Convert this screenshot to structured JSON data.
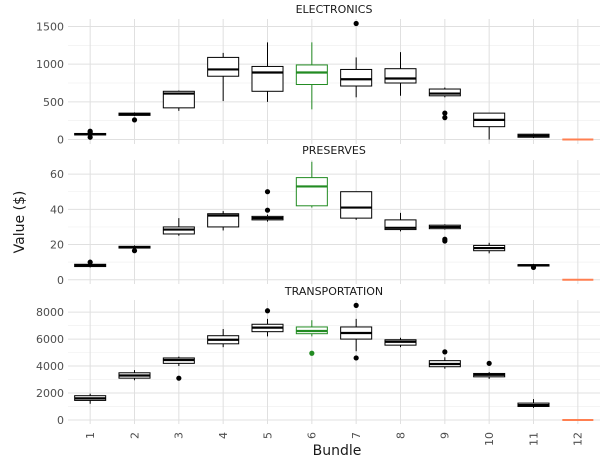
{
  "chart_data": {
    "type": "box",
    "xlabel": "Bundle",
    "ylabel": "Value ($)",
    "categories": [
      "1",
      "2",
      "3",
      "4",
      "5",
      "6",
      "7",
      "8",
      "9",
      "10",
      "11",
      "12"
    ],
    "colors": {
      "default": "#000000",
      "highlight": "#228b22",
      "zero": "#ff7f50"
    },
    "panels": [
      {
        "title": "ELECTRONICS",
        "ylim": [
          -60,
          1600
        ],
        "yticks": [
          0,
          500,
          1000,
          1500
        ],
        "boxes": [
          {
            "x": "1",
            "q1": 60,
            "median": 70,
            "q3": 80,
            "lo": 55,
            "hi": 90,
            "outliers": [
              30,
              95,
              110
            ],
            "color": "default"
          },
          {
            "x": "2",
            "q1": 320,
            "median": 335,
            "q3": 350,
            "lo": 310,
            "hi": 360,
            "outliers": [
              260
            ],
            "color": "default"
          },
          {
            "x": "3",
            "q1": 420,
            "median": 610,
            "q3": 640,
            "lo": 380,
            "hi": 650,
            "outliers": [],
            "color": "default"
          },
          {
            "x": "4",
            "q1": 840,
            "median": 930,
            "q3": 1090,
            "lo": 510,
            "hi": 1150,
            "outliers": [],
            "color": "default"
          },
          {
            "x": "5",
            "q1": 640,
            "median": 890,
            "q3": 970,
            "lo": 500,
            "hi": 1290,
            "outliers": [],
            "color": "default"
          },
          {
            "x": "6",
            "q1": 730,
            "median": 890,
            "q3": 990,
            "lo": 400,
            "hi": 1290,
            "outliers": [],
            "color": "highlight"
          },
          {
            "x": "7",
            "q1": 710,
            "median": 800,
            "q3": 930,
            "lo": 560,
            "hi": 1090,
            "outliers": [
              1540
            ],
            "color": "default"
          },
          {
            "x": "8",
            "q1": 750,
            "median": 810,
            "q3": 940,
            "lo": 580,
            "hi": 1160,
            "outliers": [],
            "color": "default"
          },
          {
            "x": "9",
            "q1": 580,
            "median": 610,
            "q3": 670,
            "lo": 560,
            "hi": 690,
            "outliers": [
              350,
              290
            ],
            "color": "default"
          },
          {
            "x": "10",
            "q1": 170,
            "median": 260,
            "q3": 350,
            "lo": 0,
            "hi": 350,
            "outliers": [],
            "color": "default"
          },
          {
            "x": "11",
            "q1": 30,
            "median": 50,
            "q3": 70,
            "lo": 20,
            "hi": 80,
            "outliers": [],
            "color": "default"
          },
          {
            "x": "12",
            "q1": 0,
            "median": 0,
            "q3": 0,
            "lo": 0,
            "hi": 0,
            "outliers": [],
            "color": "zero"
          }
        ]
      },
      {
        "title": "PRESERVES",
        "ylim": [
          -2.4,
          68
        ],
        "yticks": [
          0,
          20,
          40,
          60
        ],
        "boxes": [
          {
            "x": "1",
            "q1": 7.5,
            "median": 8.2,
            "q3": 8.8,
            "lo": 7,
            "hi": 9,
            "outliers": [
              10
            ],
            "color": "default"
          },
          {
            "x": "2",
            "q1": 18,
            "median": 18.5,
            "q3": 19,
            "lo": 17.5,
            "hi": 19.5,
            "outliers": [
              16.5
            ],
            "color": "default"
          },
          {
            "x": "3",
            "q1": 26,
            "median": 28.5,
            "q3": 30,
            "lo": 25,
            "hi": 35,
            "outliers": [],
            "color": "default"
          },
          {
            "x": "4",
            "q1": 30,
            "median": 36.5,
            "q3": 37.5,
            "lo": 28,
            "hi": 39,
            "outliers": [],
            "color": "default"
          },
          {
            "x": "5",
            "q1": 34,
            "median": 35,
            "q3": 36,
            "lo": 33,
            "hi": 37,
            "outliers": [
              50,
              39.5
            ],
            "color": "default"
          },
          {
            "x": "6",
            "q1": 42,
            "median": 53,
            "q3": 58,
            "lo": 41,
            "hi": 67,
            "outliers": [],
            "color": "highlight"
          },
          {
            "x": "7",
            "q1": 35,
            "median": 41,
            "q3": 50,
            "lo": 34,
            "hi": 50,
            "outliers": [],
            "color": "default"
          },
          {
            "x": "8",
            "q1": 28.5,
            "median": 29.5,
            "q3": 34,
            "lo": 27.5,
            "hi": 38,
            "outliers": [],
            "color": "default"
          },
          {
            "x": "9",
            "q1": 29,
            "median": 30,
            "q3": 31,
            "lo": 28.5,
            "hi": 31.5,
            "outliers": [
              23,
              22
            ],
            "color": "default"
          },
          {
            "x": "10",
            "q1": 16.5,
            "median": 18,
            "q3": 19.5,
            "lo": 15,
            "hi": 21,
            "outliers": [],
            "color": "default"
          },
          {
            "x": "11",
            "q1": 7.8,
            "median": 8.2,
            "q3": 8.6,
            "lo": 7.5,
            "hi": 9,
            "outliers": [
              7
            ],
            "color": "default"
          },
          {
            "x": "12",
            "q1": 0,
            "median": 0,
            "q3": 0,
            "lo": 0,
            "hi": 0,
            "outliers": [],
            "color": "zero"
          }
        ]
      },
      {
        "title": "TRANSPORTATION",
        "ylim": [
          -300,
          8900
        ],
        "yticks": [
          0,
          2000,
          4000,
          6000,
          8000
        ],
        "boxes": [
          {
            "x": "1",
            "q1": 1450,
            "median": 1600,
            "q3": 1800,
            "lo": 1200,
            "hi": 1950,
            "outliers": [],
            "color": "default"
          },
          {
            "x": "2",
            "q1": 3100,
            "median": 3300,
            "q3": 3500,
            "lo": 2950,
            "hi": 3700,
            "outliers": [],
            "color": "default"
          },
          {
            "x": "3",
            "q1": 4200,
            "median": 4450,
            "q3": 4600,
            "lo": 4000,
            "hi": 4700,
            "outliers": [
              3100
            ],
            "color": "default"
          },
          {
            "x": "4",
            "q1": 5650,
            "median": 5950,
            "q3": 6250,
            "lo": 5400,
            "hi": 6750,
            "outliers": [],
            "color": "default"
          },
          {
            "x": "5",
            "q1": 6550,
            "median": 6850,
            "q3": 7100,
            "lo": 6200,
            "hi": 7500,
            "outliers": [
              8100
            ],
            "color": "default"
          },
          {
            "x": "6",
            "q1": 6400,
            "median": 6600,
            "q3": 6900,
            "lo": 6200,
            "hi": 7400,
            "outliers": [
              4950
            ],
            "color": "highlight"
          },
          {
            "x": "7",
            "q1": 6000,
            "median": 6450,
            "q3": 6900,
            "lo": 5100,
            "hi": 7500,
            "outliers": [
              8500,
              4600
            ],
            "color": "default"
          },
          {
            "x": "8",
            "q1": 5550,
            "median": 5800,
            "q3": 5950,
            "lo": 5400,
            "hi": 6100,
            "outliers": [],
            "color": "default"
          },
          {
            "x": "9",
            "q1": 3950,
            "median": 4150,
            "q3": 4400,
            "lo": 3800,
            "hi": 4650,
            "outliers": [
              5050
            ],
            "color": "default"
          },
          {
            "x": "10",
            "q1": 3200,
            "median": 3350,
            "q3": 3450,
            "lo": 3050,
            "hi": 3550,
            "outliers": [
              4200
            ],
            "color": "default"
          },
          {
            "x": "11",
            "q1": 1000,
            "median": 1100,
            "q3": 1250,
            "lo": 900,
            "hi": 1550,
            "outliers": [],
            "color": "default"
          },
          {
            "x": "12",
            "q1": 0,
            "median": 0,
            "q3": 0,
            "lo": 0,
            "hi": 0,
            "outliers": [],
            "color": "zero"
          }
        ]
      }
    ]
  }
}
